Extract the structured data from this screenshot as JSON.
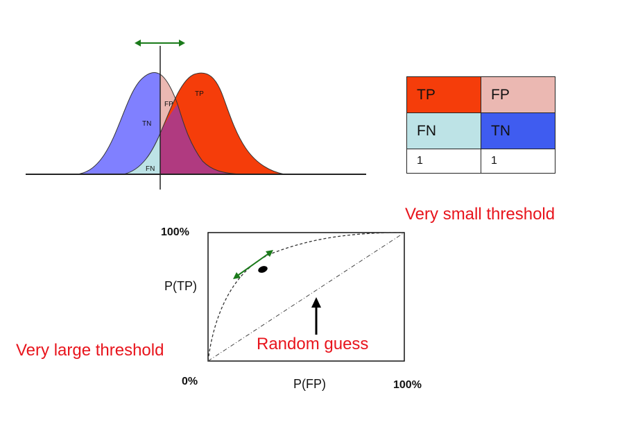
{
  "distribution_plot": {
    "labels": {
      "tn": "TN",
      "fp": "FP",
      "tp": "TP",
      "fn": "FN"
    }
  },
  "confusion_table": {
    "rows": [
      [
        {
          "text": "TP",
          "color": "#f53d0a"
        },
        {
          "text": "FP",
          "color": "#ebb8b2"
        }
      ],
      [
        {
          "text": "FN",
          "color": "#bde3e6"
        },
        {
          "text": "TN",
          "color": "#3f5cf0"
        }
      ],
      [
        {
          "text": "1",
          "color": "#ffffff"
        },
        {
          "text": "1",
          "color": "#ffffff"
        }
      ]
    ]
  },
  "roc_plot": {
    "y_top_label": "100%",
    "y_label": "P(TP)",
    "x_origin_label": "0%",
    "x_label": "P(FP)",
    "x_right_label": "100%",
    "random_guess_label": "Random guess"
  },
  "annotations": {
    "very_small_threshold": "Very small threshold",
    "very_large_threshold": "Very large threshold"
  },
  "colors": {
    "negative_class": "#8080ff",
    "positive_class": "#f53d0a",
    "overlap": "#b03a80",
    "arrow_green": "#1a7a1a",
    "label_red": "#e8141c"
  }
}
